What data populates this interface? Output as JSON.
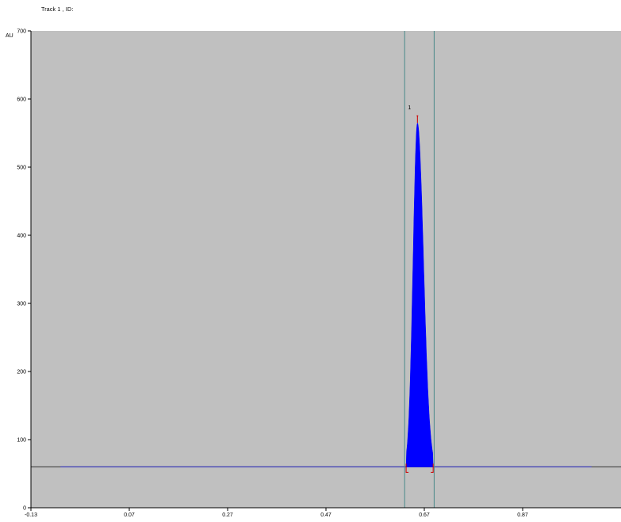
{
  "chart_data": {
    "type": "area",
    "title": "Track 1 , ID:",
    "ylabel": "AU",
    "xlabel": "",
    "xlim": [
      -0.13,
      1.07
    ],
    "ylim": [
      0,
      700
    ],
    "x_ticks": [
      -0.13,
      0.07,
      0.27,
      0.47,
      0.67,
      0.87
    ],
    "x_tick_labels": [
      "-0.13",
      "0.07",
      "0.27",
      "0.47",
      "0.67",
      "0.87"
    ],
    "y_ticks": [
      0,
      100,
      200,
      300,
      400,
      500,
      600,
      700
    ],
    "y_tick_labels": [
      "0",
      "100",
      "200",
      "300",
      "400",
      "500",
      "600",
      "700"
    ],
    "baseline": {
      "x_start": -0.13,
      "x_end": 1.07,
      "y": 60
    },
    "integration_window": [
      0.63,
      0.69
    ],
    "peaks": [
      {
        "label": "1",
        "start": 0.633,
        "apex": 0.656,
        "end": 0.688,
        "height": 565,
        "baseline": 60
      }
    ],
    "colors": {
      "plot_background": "#c0c0c0",
      "peak_fill": "#0000ff",
      "baseline_line": "#3333cc",
      "window_line": "#4a8a8a",
      "peak_marker": "#cc0000",
      "axis": "#000000"
    },
    "grid": false
  }
}
